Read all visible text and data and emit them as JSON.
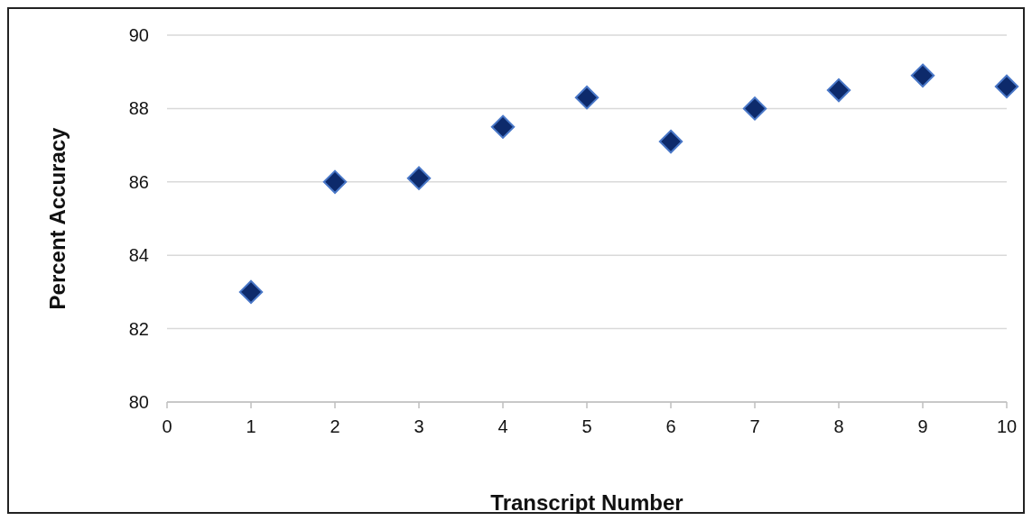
{
  "chart_data": {
    "type": "scatter",
    "xlabel": "Transcript Number",
    "ylabel": "Percent Accuracy",
    "x": [
      1,
      2,
      3,
      4,
      5,
      6,
      7,
      8,
      9,
      10
    ],
    "values": [
      83.0,
      86.0,
      86.1,
      87.5,
      88.3,
      87.1,
      88.0,
      88.5,
      88.9,
      88.6
    ],
    "color": "#0d2a6b",
    "marker": "diamond",
    "xlim": [
      0,
      10
    ],
    "xticks": [
      0,
      1,
      2,
      3,
      4,
      5,
      6,
      7,
      8,
      9,
      10
    ],
    "ylim": [
      80,
      90
    ],
    "yticks": [
      80,
      82,
      84,
      86,
      88,
      90
    ],
    "grid": "y"
  }
}
